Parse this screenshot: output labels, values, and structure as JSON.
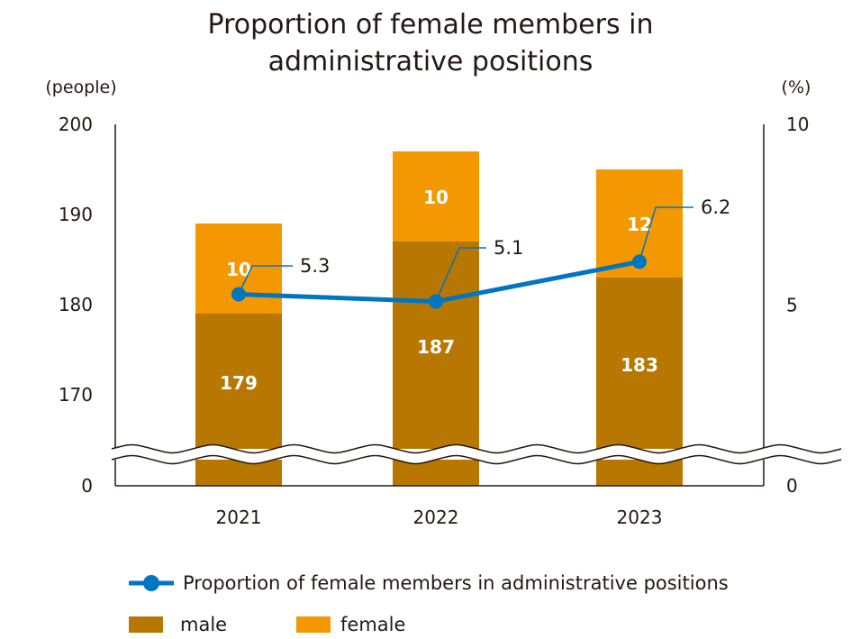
{
  "chart_data": {
    "type": "bar",
    "title_lines": [
      "Proportion of female members in",
      "administrative positions"
    ],
    "left_axis_unit": "(people)",
    "right_axis_unit": "(%)",
    "categories": [
      "2021",
      "2022",
      "2023"
    ],
    "left_ticks": [
      "200",
      "190",
      "180",
      "170",
      "0"
    ],
    "right_ticks": [
      "10",
      "5",
      "0"
    ],
    "left_axis": {
      "broken": true,
      "visible_range": [
        166,
        200
      ]
    },
    "right_axis": {
      "range": [
        0,
        10
      ]
    },
    "stacked": true,
    "series": [
      {
        "name": "male",
        "values": [
          179,
          187,
          183
        ],
        "color": "#b87700"
      },
      {
        "name": "female",
        "values": [
          10,
          10,
          12
        ],
        "color": "#f39800"
      }
    ],
    "line_series": {
      "name": "Proportion of female members in administrative positions",
      "values": [
        5.3,
        5.1,
        6.2
      ],
      "labels": [
        "5.3",
        "5.1",
        "6.2"
      ],
      "color": "#0075c2",
      "axis": "right"
    },
    "legend": {
      "line_label": "Proportion of female members in administrative positions",
      "male_label": "male",
      "female_label": "female"
    }
  }
}
